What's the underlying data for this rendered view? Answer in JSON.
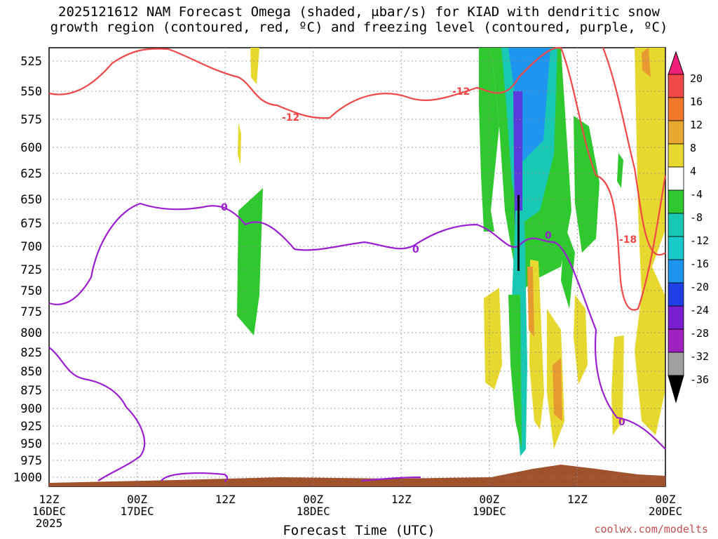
{
  "title_line1": "2025121612 NAM Forecast Omega (shaded, μbar/s) for KIAD with dendritic snow",
  "title_line2": "growth region (contoured, red, ºC) and freezing level (contoured, purple, ºC)",
  "xlabel": "Forecast Time (UTC)",
  "footer": "coolwx.com/modelts",
  "chart_data": {
    "type": "heatmap",
    "y_ticks": [
      "525",
      "550",
      "575",
      "600",
      "625",
      "650",
      "675",
      "700",
      "725",
      "750",
      "775",
      "800",
      "825",
      "850",
      "875",
      "900",
      "925",
      "950",
      "975",
      "1000"
    ],
    "x_ticks": [
      {
        "l1": "12Z",
        "l2": "16DEC",
        "l3": "2025"
      },
      {
        "l1": "00Z",
        "l2": "17DEC",
        "l3": ""
      },
      {
        "l1": "12Z",
        "l2": "",
        "l3": ""
      },
      {
        "l1": "00Z",
        "l2": "18DEC",
        "l3": ""
      },
      {
        "l1": "12Z",
        "l2": "",
        "l3": ""
      },
      {
        "l1": "00Z",
        "l2": "19DEC",
        "l3": ""
      },
      {
        "l1": "12Z",
        "l2": "",
        "l3": ""
      },
      {
        "l1": "00Z",
        "l2": "20DEC",
        "l3": ""
      }
    ],
    "colorbar_labels": [
      "20",
      "16",
      "12",
      "8",
      "4",
      "-4",
      "-8",
      "-12",
      "-16",
      "-20",
      "-24",
      "-28",
      "-32",
      "-36"
    ],
    "contour_labels": [
      "-12",
      "-12",
      "-18",
      "0",
      "0",
      "0",
      "0"
    ]
  }
}
